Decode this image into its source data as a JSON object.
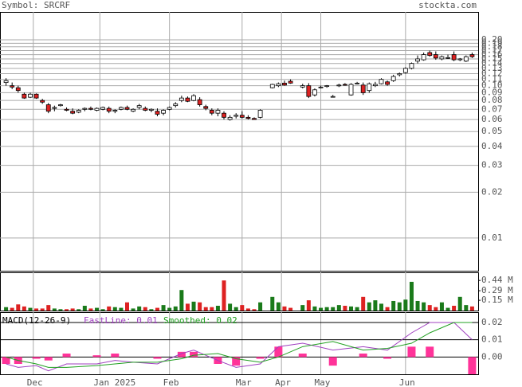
{
  "header": {
    "symbol": "Symbol: SRCRF",
    "site": "stockta.com"
  },
  "chart_data": [
    {
      "type": "candlestick",
      "log_scale": true,
      "grid": true,
      "up_color": "#ffffff",
      "down_color": "#dd2222",
      "xlim": [
        -11,
        147
      ],
      "xticks": [
        {
          "value": 0,
          "label": "Dec"
        },
        {
          "value": 22,
          "label": "Jan 2025"
        },
        {
          "value": 45,
          "label": "Feb"
        },
        {
          "value": 69,
          "label": "Mar"
        },
        {
          "value": 82,
          "label": "Apr"
        },
        {
          "value": 95,
          "label": "May"
        },
        {
          "value": 123,
          "label": "Jun"
        }
      ],
      "ylim": [
        0.0061,
        0.305
      ],
      "yticks": [
        {
          "value": 0.01,
          "label": "0.01"
        },
        {
          "value": 0.02,
          "label": "0.02"
        },
        {
          "value": 0.03,
          "label": "0.03"
        },
        {
          "value": 0.04,
          "label": "0.04"
        },
        {
          "value": 0.05,
          "label": "0.05"
        },
        {
          "value": 0.06,
          "label": "0.06"
        },
        {
          "value": 0.07,
          "label": "0.07"
        },
        {
          "value": 0.08,
          "label": "0.08"
        },
        {
          "value": 0.09,
          "label": "0.09"
        },
        {
          "value": 0.1,
          "label": "0.10"
        },
        {
          "value": 0.11,
          "label": "0.11"
        },
        {
          "value": 0.12,
          "label": "0.12"
        },
        {
          "value": 0.13,
          "label": "0.13"
        },
        {
          "value": 0.14,
          "label": "0.14"
        },
        {
          "value": 0.15,
          "label": "0.15"
        },
        {
          "value": 0.16,
          "label": "0.16"
        },
        {
          "value": 0.17,
          "label": "0.17"
        },
        {
          "value": 0.18,
          "label": "0.18"
        },
        {
          "value": 0.19,
          "label": "0.19"
        },
        {
          "value": 0.2,
          "label": "0.20"
        }
      ],
      "x": [
        -9,
        -7,
        -5,
        -3,
        -1,
        1,
        3,
        5,
        7,
        9,
        11,
        13,
        15,
        17,
        19,
        21,
        23,
        25,
        27,
        29,
        31,
        33,
        35,
        37,
        39,
        41,
        43,
        45,
        47,
        49,
        51,
        53,
        55,
        57,
        59,
        61,
        63,
        65,
        67,
        69,
        71,
        73,
        75,
        79,
        81,
        83,
        85,
        89,
        91,
        93,
        95,
        97,
        99,
        101,
        103,
        105,
        107,
        109,
        111,
        113,
        115,
        117,
        119,
        121,
        123,
        125,
        127,
        129,
        131,
        133,
        135,
        137,
        139,
        141,
        143,
        145
      ],
      "open": [
        0.105,
        0.1,
        0.097,
        0.088,
        0.084,
        0.088,
        0.08,
        0.075,
        0.071,
        0.074,
        0.07,
        0.068,
        0.067,
        0.07,
        0.071,
        0.069,
        0.07,
        0.071,
        0.068,
        0.07,
        0.072,
        0.068,
        0.072,
        0.071,
        0.069,
        0.068,
        0.066,
        0.07,
        0.074,
        0.08,
        0.083,
        0.08,
        0.081,
        0.073,
        0.069,
        0.066,
        0.066,
        0.06,
        0.063,
        0.064,
        0.062,
        0.061,
        0.062,
        0.097,
        0.1,
        0.104,
        0.107,
        0.098,
        0.1,
        0.087,
        0.097,
        0.099,
        0.085,
        0.1,
        0.102,
        0.087,
        0.103,
        0.101,
        0.093,
        0.1,
        0.103,
        0.106,
        0.108,
        0.118,
        0.122,
        0.13,
        0.145,
        0.148,
        0.165,
        0.16,
        0.15,
        0.152,
        0.16,
        0.148,
        0.145,
        0.16
      ],
      "high": [
        0.112,
        0.105,
        0.1,
        0.09,
        0.09,
        0.089,
        0.082,
        0.077,
        0.074,
        0.076,
        0.072,
        0.071,
        0.07,
        0.072,
        0.073,
        0.072,
        0.073,
        0.073,
        0.07,
        0.073,
        0.074,
        0.071,
        0.076,
        0.073,
        0.071,
        0.071,
        0.07,
        0.073,
        0.078,
        0.086,
        0.085,
        0.088,
        0.084,
        0.075,
        0.071,
        0.071,
        0.068,
        0.064,
        0.066,
        0.068,
        0.064,
        0.062,
        0.07,
        0.103,
        0.105,
        0.108,
        0.11,
        0.103,
        0.104,
        0.096,
        0.1,
        0.101,
        0.087,
        0.103,
        0.104,
        0.104,
        0.106,
        0.105,
        0.105,
        0.106,
        0.112,
        0.108,
        0.118,
        0.122,
        0.132,
        0.142,
        0.158,
        0.165,
        0.17,
        0.168,
        0.158,
        0.16,
        0.168,
        0.152,
        0.158,
        0.165
      ],
      "low": [
        0.1,
        0.095,
        0.09,
        0.082,
        0.083,
        0.082,
        0.076,
        0.066,
        0.068,
        0.073,
        0.068,
        0.065,
        0.066,
        0.068,
        0.069,
        0.068,
        0.069,
        0.066,
        0.066,
        0.069,
        0.069,
        0.067,
        0.07,
        0.068,
        0.067,
        0.063,
        0.064,
        0.069,
        0.072,
        0.078,
        0.078,
        0.079,
        0.073,
        0.069,
        0.064,
        0.063,
        0.06,
        0.059,
        0.061,
        0.061,
        0.06,
        0.06,
        0.061,
        0.096,
        0.098,
        0.1,
        0.103,
        0.096,
        0.083,
        0.085,
        0.096,
        0.097,
        0.084,
        0.098,
        0.1,
        0.086,
        0.102,
        0.087,
        0.09,
        0.098,
        0.102,
        0.1,
        0.106,
        0.115,
        0.12,
        0.128,
        0.14,
        0.146,
        0.155,
        0.148,
        0.147,
        0.15,
        0.145,
        0.145,
        0.143,
        0.152
      ],
      "close": [
        0.108,
        0.098,
        0.093,
        0.083,
        0.088,
        0.083,
        0.078,
        0.068,
        0.072,
        0.075,
        0.069,
        0.066,
        0.069,
        0.071,
        0.07,
        0.071,
        0.072,
        0.068,
        0.069,
        0.072,
        0.07,
        0.07,
        0.074,
        0.069,
        0.07,
        0.065,
        0.069,
        0.072,
        0.076,
        0.083,
        0.079,
        0.086,
        0.075,
        0.071,
        0.066,
        0.069,
        0.062,
        0.062,
        0.064,
        0.062,
        0.061,
        0.06,
        0.069,
        0.102,
        0.103,
        0.101,
        0.104,
        0.1,
        0.085,
        0.094,
        0.098,
        0.1,
        0.085,
        0.101,
        0.101,
        0.102,
        0.104,
        0.09,
        0.103,
        0.102,
        0.11,
        0.102,
        0.115,
        0.12,
        0.13,
        0.14,
        0.15,
        0.16,
        0.158,
        0.152,
        0.155,
        0.153,
        0.148,
        0.15,
        0.155,
        0.155
      ]
    },
    {
      "type": "volume",
      "up_color": "#1a7a1a",
      "down_color": "#dd2222",
      "ylim": [
        0,
        0.547
      ],
      "yticks": [
        {
          "value": 0.15,
          "label": "0.15 M"
        },
        {
          "value": 0.29,
          "label": "0.29 M"
        },
        {
          "value": 0.44,
          "label": "0.44 M"
        }
      ],
      "values": [
        0.05,
        0.04,
        0.09,
        0.06,
        0.04,
        0.03,
        0.03,
        0.08,
        0.03,
        0.02,
        0.02,
        0.03,
        0.02,
        0.07,
        0.03,
        0.04,
        0.02,
        0.06,
        0.05,
        0.04,
        0.12,
        0.03,
        0.06,
        0.05,
        0.02,
        0.04,
        0.08,
        0.04,
        0.06,
        0.3,
        0.1,
        0.13,
        0.12,
        0.05,
        0.05,
        0.07,
        0.44,
        0.1,
        0.05,
        0.08,
        0.03,
        0.02,
        0.12,
        0.2,
        0.12,
        0.06,
        0.04,
        0.08,
        0.15,
        0.06,
        0.04,
        0.05,
        0.05,
        0.08,
        0.07,
        0.06,
        0.05,
        0.2,
        0.12,
        0.15,
        0.1,
        0.05,
        0.14,
        0.12,
        0.16,
        0.42,
        0.14,
        0.12,
        0.08,
        0.05,
        0.12,
        0.04,
        0.07,
        0.2,
        0.08,
        0.06
      ]
    },
    {
      "type": "macd",
      "title": "MACD(12-26-9)",
      "ylim": [
        -0.01,
        0.026
      ],
      "yticks": [
        {
          "value": 0,
          "label": "0.00"
        },
        {
          "value": 0.01,
          "label": "0.01"
        },
        {
          "value": 0.02,
          "label": "0.02"
        }
      ],
      "x": [
        -9,
        -5,
        1,
        5,
        11,
        21,
        27,
        33,
        41,
        49,
        53,
        61,
        67,
        75,
        81,
        89,
        99,
        109,
        117,
        125,
        131,
        139,
        145
      ],
      "histogram": {
        "color": "#ff3399",
        "values": [
          -0.004,
          -0.004,
          -0.001,
          -0.002,
          0.002,
          0.001,
          0.002,
          0,
          -0.001,
          0.003,
          0.003,
          -0.004,
          -0.005,
          -0.001,
          0.006,
          0.002,
          -0.005,
          0.002,
          -0.001,
          0.006,
          0.006,
          0,
          -0.01
        ]
      },
      "series": [
        {
          "name": "FastLine: 0.01",
          "color": "#a040c0",
          "values": [
            -0.004,
            -0.006,
            -0.005,
            -0.008,
            -0.004,
            -0.004,
            -0.002,
            -0.003,
            -0.004,
            0.002,
            0.004,
            -0.002,
            -0.006,
            -0.004,
            0.006,
            0.008,
            0.004,
            0.006,
            0.004,
            0.014,
            0.02,
            0.02,
            0.01
          ]
        },
        {
          "name": "Smoothed: 0.02",
          "color": "#20a020",
          "values": [
            0,
            -0.002,
            -0.004,
            -0.006,
            -0.006,
            -0.005,
            -0.004,
            -0.003,
            -0.003,
            -0.001,
            0.001,
            0.002,
            -0.001,
            -0.003,
            0,
            0.006,
            0.009,
            0.004,
            0.005,
            0.008,
            0.014,
            0.02,
            0.02
          ]
        }
      ]
    }
  ]
}
